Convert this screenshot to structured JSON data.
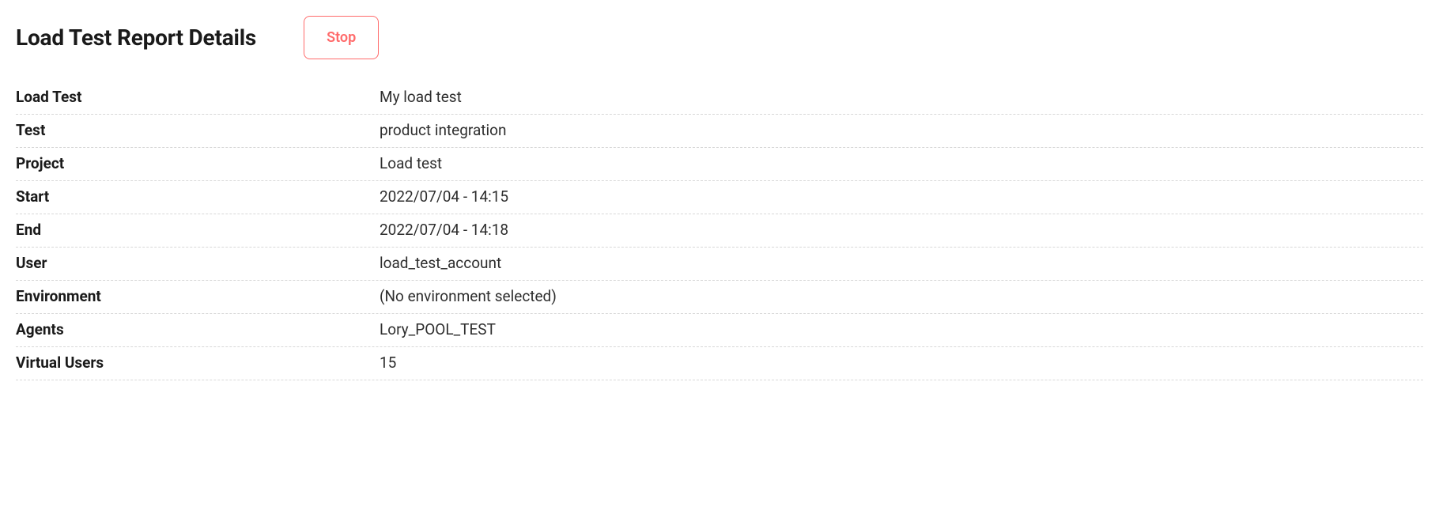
{
  "header": {
    "title": "Load Test Report Details",
    "stop_label": "Stop"
  },
  "details": {
    "rows": [
      {
        "label": "Load Test",
        "value": "My load test"
      },
      {
        "label": "Test",
        "value": "product integration"
      },
      {
        "label": "Project",
        "value": "Load test"
      },
      {
        "label": "Start",
        "value": "2022/07/04 - 14:15"
      },
      {
        "label": "End",
        "value": "2022/07/04 - 14:18"
      },
      {
        "label": "User",
        "value": "load_test_account"
      },
      {
        "label": "Environment",
        "value": "(No environment selected)"
      },
      {
        "label": "Agents",
        "value": "Lory_POOL_TEST"
      },
      {
        "label": "Virtual Users",
        "value": "15"
      }
    ]
  },
  "colors": {
    "accent": "#ff6b6b",
    "text": "#1a1a1a",
    "value_text": "#2e2e2e",
    "divider": "#d8d8d8",
    "background": "#ffffff"
  }
}
